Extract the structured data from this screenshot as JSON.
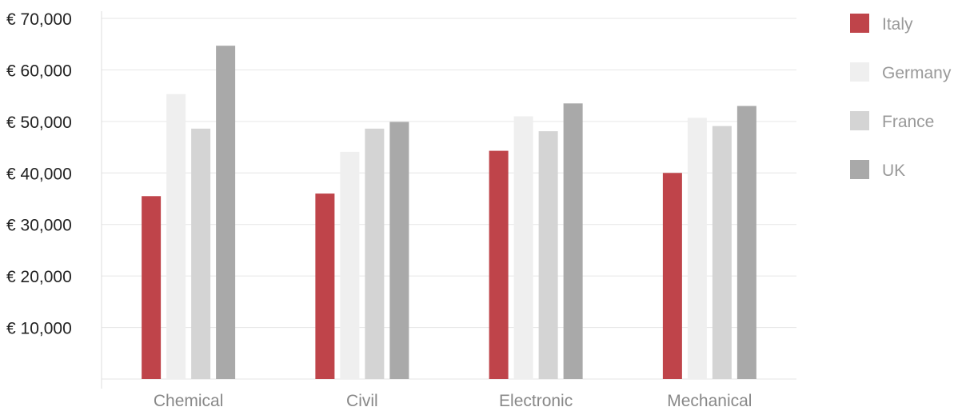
{
  "chart_data": {
    "type": "bar",
    "title": "",
    "xlabel": "",
    "ylabel": "",
    "categories": [
      "Chemical",
      "Civil",
      "Electronic",
      "Mechanical"
    ],
    "series": [
      {
        "name": "Italy",
        "color": "#bf444a",
        "values": [
          35500,
          36000,
          44300,
          40000
        ]
      },
      {
        "name": "Germany",
        "color": "#efefef",
        "values": [
          55300,
          44100,
          51000,
          50700
        ]
      },
      {
        "name": "France",
        "color": "#d4d4d4",
        "values": [
          48600,
          48600,
          48100,
          49100
        ]
      },
      {
        "name": "UK",
        "color": "#a9a9a9",
        "values": [
          64700,
          49900,
          53500,
          53000
        ]
      }
    ],
    "ylim": [
      0,
      70000
    ],
    "yticks": [
      10000,
      20000,
      30000,
      40000,
      50000,
      60000,
      70000
    ],
    "ytick_labels": [
      "€ 10,000",
      "€ 20,000",
      "€ 30,000",
      "€ 40,000",
      "€ 50,000",
      "€ 60,000",
      "€ 70,000"
    ],
    "grid": true,
    "legend_position": "right"
  }
}
